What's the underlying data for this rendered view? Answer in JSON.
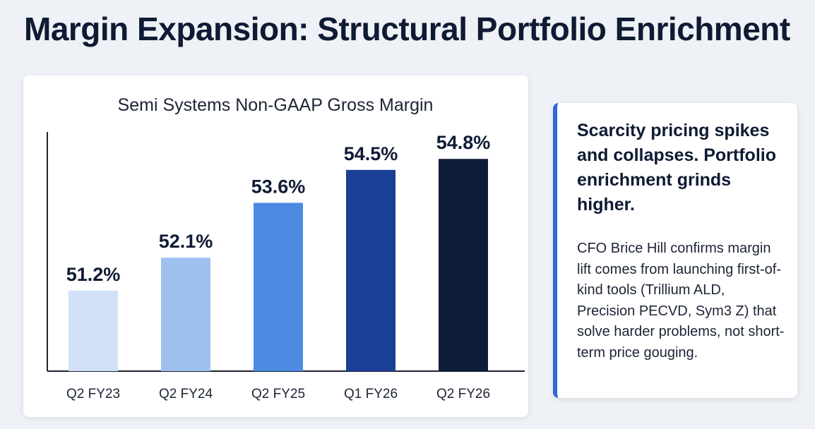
{
  "page": {
    "title": "Margin Expansion: Structural Portfolio Enrichment"
  },
  "chart_data": {
    "type": "bar",
    "title": "Semi Systems Non-GAAP Gross Margin",
    "categories": [
      "Q2 FY23",
      "Q2 FY24",
      "Q2 FY25",
      "Q1 FY26",
      "Q2 FY26"
    ],
    "values": [
      51.2,
      52.1,
      53.6,
      54.5,
      54.8
    ],
    "data_labels": [
      "51.2%",
      "52.1%",
      "53.6%",
      "54.5%",
      "54.8%"
    ],
    "colors": [
      "#d2e1f8",
      "#9dc0ee",
      "#4d8be3",
      "#1a3f96",
      "#0e1c3a"
    ],
    "xlabel": "",
    "ylabel": "",
    "ylim": [
      49,
      56
    ],
    "grid": false
  },
  "side_panel": {
    "heading": "Scarcity pricing spikes and collapses. Portfolio enrichment grinds higher.",
    "body": "CFO Brice Hill confirms margin lift comes from launching first-of-kind tools (Trillium ALD, Precision PECVD, Sym3 Z) that solve harder problems, not short-term price gouging.",
    "accent_color": "#2f66d8"
  }
}
